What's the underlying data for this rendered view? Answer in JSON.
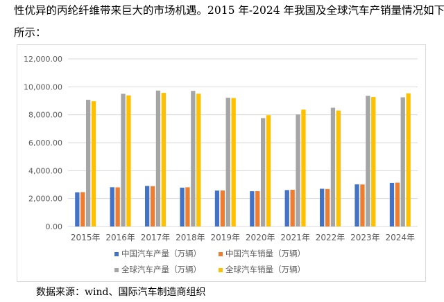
{
  "intro": {
    "line1": "性优异的丙纶纤维带来巨大的市场机遇。2015 年-2024 年我国及全球汽车产销量情况如下",
    "line2": "所示："
  },
  "source": "数据来源：wind、国际汽车制造商组织",
  "chart_data": {
    "type": "bar",
    "title": "",
    "xlabel": "",
    "ylabel": "",
    "categories": [
      "2015年",
      "2016年",
      "2017年",
      "2018年",
      "2019年",
      "2020年",
      "2021年",
      "2022年",
      "2023年",
      "2024年"
    ],
    "ylim": [
      0,
      12000
    ],
    "yticks": [
      0,
      2000,
      4000,
      6000,
      8000,
      10000,
      12000
    ],
    "ytick_labels": [
      "0.00",
      "2,000.00",
      "4,000.00",
      "6,000.00",
      "8,000.00",
      "10,000.00",
      "12,000.00"
    ],
    "grid": true,
    "legend_position": "bottom",
    "series": [
      {
        "name": "中国汽车产量（万辆）",
        "color": "#4472c4",
        "values": [
          2450,
          2812,
          2902,
          2781,
          2572,
          2523,
          2608,
          2702,
          3016,
          3128
        ]
      },
      {
        "name": "中国汽车销量（万辆）",
        "color": "#ed7d31",
        "values": [
          2460,
          2803,
          2888,
          2808,
          2577,
          2531,
          2628,
          2686,
          3009,
          3144
        ]
      },
      {
        "name": "全球汽车产量（万辆）",
        "color": "#a5a5a5",
        "values": [
          9070,
          9498,
          9730,
          9706,
          9218,
          7762,
          8015,
          8502,
          9355,
          9250
        ]
      },
      {
        "name": "全球汽车销量（万辆）",
        "color": "#ffc000",
        "values": [
          8968,
          9386,
          9566,
          9506,
          9198,
          7970,
          8368,
          8305,
          9270,
          9530
        ]
      }
    ]
  }
}
